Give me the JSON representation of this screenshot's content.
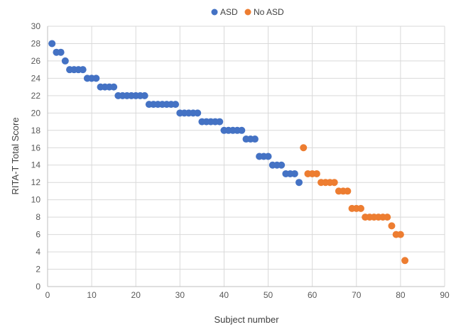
{
  "chart_data": {
    "type": "scatter",
    "xlabel": "Subject number",
    "ylabel": "RITA-T Total Score",
    "xlim": [
      0,
      90
    ],
    "ylim": [
      0,
      30
    ],
    "x_ticks": [
      0,
      10,
      20,
      30,
      40,
      50,
      60,
      70,
      80,
      90
    ],
    "y_ticks": [
      0,
      2,
      4,
      6,
      8,
      10,
      12,
      14,
      16,
      18,
      20,
      22,
      24,
      26,
      28,
      30
    ],
    "grid": "both",
    "legend_position": "top",
    "series": [
      {
        "name": "ASD",
        "color": "#4472C4",
        "points": [
          [
            1,
            28
          ],
          [
            2,
            27
          ],
          [
            3,
            27
          ],
          [
            4,
            26
          ],
          [
            5,
            25
          ],
          [
            6,
            25
          ],
          [
            7,
            25
          ],
          [
            8,
            25
          ],
          [
            9,
            24
          ],
          [
            10,
            24
          ],
          [
            11,
            24
          ],
          [
            12,
            23
          ],
          [
            13,
            23
          ],
          [
            14,
            23
          ],
          [
            15,
            23
          ],
          [
            16,
            22
          ],
          [
            17,
            22
          ],
          [
            18,
            22
          ],
          [
            19,
            22
          ],
          [
            20,
            22
          ],
          [
            21,
            22
          ],
          [
            22,
            22
          ],
          [
            23,
            21
          ],
          [
            24,
            21
          ],
          [
            25,
            21
          ],
          [
            26,
            21
          ],
          [
            27,
            21
          ],
          [
            28,
            21
          ],
          [
            29,
            21
          ],
          [
            30,
            20
          ],
          [
            31,
            20
          ],
          [
            32,
            20
          ],
          [
            33,
            20
          ],
          [
            34,
            20
          ],
          [
            35,
            19
          ],
          [
            36,
            19
          ],
          [
            37,
            19
          ],
          [
            38,
            19
          ],
          [
            39,
            19
          ],
          [
            40,
            18
          ],
          [
            41,
            18
          ],
          [
            42,
            18
          ],
          [
            43,
            18
          ],
          [
            44,
            18
          ],
          [
            45,
            17
          ],
          [
            46,
            17
          ],
          [
            47,
            17
          ],
          [
            48,
            15
          ],
          [
            49,
            15
          ],
          [
            50,
            15
          ],
          [
            51,
            14
          ],
          [
            52,
            14
          ],
          [
            53,
            14
          ],
          [
            54,
            13
          ],
          [
            55,
            13
          ],
          [
            56,
            13
          ],
          [
            57,
            12
          ]
        ]
      },
      {
        "name": "No ASD",
        "color": "#ED7D31",
        "points": [
          [
            58,
            16
          ],
          [
            59,
            13
          ],
          [
            60,
            13
          ],
          [
            61,
            13
          ],
          [
            62,
            12
          ],
          [
            63,
            12
          ],
          [
            64,
            12
          ],
          [
            65,
            12
          ],
          [
            66,
            11
          ],
          [
            67,
            11
          ],
          [
            68,
            11
          ],
          [
            69,
            9
          ],
          [
            70,
            9
          ],
          [
            71,
            9
          ],
          [
            72,
            8
          ],
          [
            73,
            8
          ],
          [
            74,
            8
          ],
          [
            75,
            8
          ],
          [
            76,
            8
          ],
          [
            77,
            8
          ],
          [
            78,
            7
          ],
          [
            79,
            6
          ],
          [
            80,
            6
          ],
          [
            81,
            3
          ]
        ]
      }
    ]
  }
}
